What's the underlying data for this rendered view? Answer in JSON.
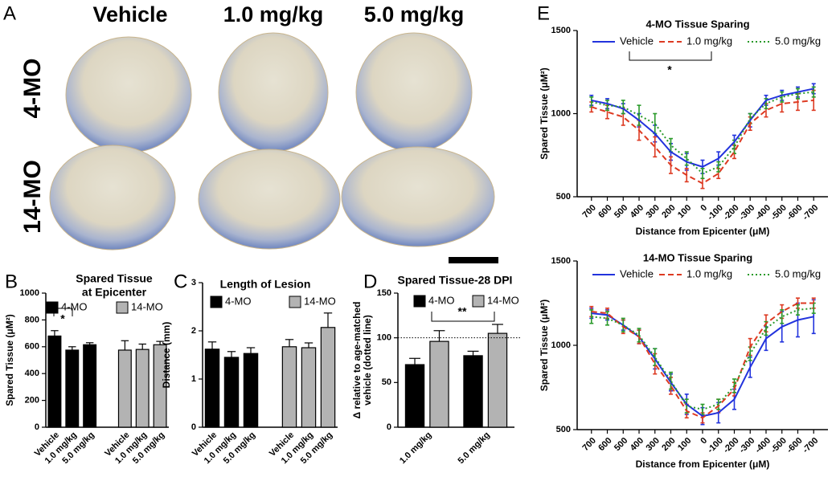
{
  "panel_a": {
    "panel": "A",
    "columns": [
      "Vehicle",
      "1.0 mg/kg",
      "5.0 mg/kg"
    ],
    "rows": [
      "4-MO",
      "14-MO"
    ]
  },
  "chart_data": [
    {
      "type": "bar",
      "panel": "B",
      "title": "Spared Tissue",
      "subtitle": "at Epicenter",
      "ylabel": "Spared Tissue (μM²)",
      "categories": [
        "Vehicle",
        "1.0 mg/kg",
        "5.0 mg/kg",
        null,
        "Vehicle",
        "1.0 mg/kg",
        "5.0 mg/kg"
      ],
      "series": [
        {
          "name": "4-MO",
          "color": "#000000",
          "values": [
            680,
            575,
            615,
            null,
            null,
            null,
            null
          ],
          "errors": [
            40,
            25,
            15,
            null,
            null,
            null,
            null
          ]
        },
        {
          "name": "14-MO",
          "color": "#b3b3b3",
          "values": [
            null,
            null,
            null,
            null,
            575,
            580,
            615
          ],
          "errors": [
            null,
            null,
            null,
            null,
            70,
            40,
            25
          ]
        }
      ],
      "ylim": [
        0,
        1000
      ],
      "yticks": [
        0,
        200,
        400,
        600,
        800,
        1000
      ],
      "annotation": "*"
    },
    {
      "type": "bar",
      "panel": "C",
      "title": "Length of Lesion",
      "ylabel": "Distance (mm)",
      "categories": [
        "Vehicle",
        "1.0 mg/kg",
        "5.0 mg/kg",
        null,
        "Vehicle",
        "1.0 mg/kg",
        "5.0 mg/kg"
      ],
      "series": [
        {
          "name": "4-MO",
          "color": "#000000",
          "values": [
            1.62,
            1.45,
            1.53,
            null,
            null,
            null,
            null
          ],
          "errors": [
            0.15,
            0.12,
            0.12,
            null,
            null,
            null,
            null
          ]
        },
        {
          "name": "14-MO",
          "color": "#b3b3b3",
          "values": [
            null,
            null,
            null,
            null,
            1.67,
            1.65,
            2.07
          ],
          "errors": [
            null,
            null,
            null,
            null,
            0.15,
            0.1,
            0.3
          ]
        }
      ],
      "ylim": [
        0,
        3
      ],
      "yticks": [
        0,
        1,
        2,
        3
      ]
    },
    {
      "type": "bar",
      "panel": "D",
      "title": "Spared Tissue-28 DPI",
      "ylabel": [
        "Δ relative to age-matched",
        "vehicle (dotted line)"
      ],
      "categories": [
        "1.0 mg/kg",
        "5.0 mg/kg"
      ],
      "series": [
        {
          "name": "4-MO",
          "color": "#000000",
          "values": [
            70,
            80
          ],
          "errors": [
            7,
            5
          ]
        },
        {
          "name": "14-MO",
          "color": "#b3b3b3",
          "values": [
            96,
            105
          ],
          "errors": [
            12,
            10
          ]
        }
      ],
      "ylim": [
        0,
        150
      ],
      "yticks": [
        0,
        50,
        100,
        150
      ],
      "reference_line": 100,
      "annotation": "**"
    },
    {
      "type": "line",
      "panel": "E",
      "title": "4-MO Tissue Sparing",
      "xlabel": "Distance from Epicenter (μM)",
      "ylabel": "Spared Tissue (μM²)",
      "x": [
        700,
        600,
        500,
        400,
        300,
        200,
        100,
        0,
        -100,
        -200,
        -300,
        -400,
        -500,
        -600,
        -700
      ],
      "series": [
        {
          "name": "Vehicle",
          "color": "#2233dd",
          "dash": "solid",
          "values": [
            1080,
            1060,
            1030,
            960,
            880,
            770,
            710,
            680,
            730,
            830,
            960,
            1080,
            1110,
            1130,
            1150
          ],
          "errors": [
            30,
            30,
            30,
            40,
            50,
            50,
            50,
            40,
            40,
            40,
            40,
            30,
            30,
            30,
            30
          ]
        },
        {
          "name": "1.0 mg/kg",
          "color": "#dd3a22",
          "dash": "dashed",
          "values": [
            1040,
            1010,
            980,
            900,
            800,
            690,
            630,
            580,
            640,
            770,
            940,
            1020,
            1060,
            1070,
            1080
          ],
          "errors": [
            30,
            40,
            50,
            60,
            60,
            50,
            40,
            30,
            30,
            40,
            40,
            40,
            50,
            50,
            60
          ]
        },
        {
          "name": "5.0 mg/kg",
          "color": "#2a9a2a",
          "dash": "dotted",
          "values": [
            1070,
            1050,
            1040,
            990,
            940,
            810,
            730,
            640,
            680,
            800,
            970,
            1060,
            1100,
            1120,
            1130
          ],
          "errors": [
            30,
            30,
            40,
            60,
            60,
            40,
            40,
            30,
            30,
            40,
            30,
            30,
            30,
            30,
            30
          ]
        }
      ],
      "xlim": [
        790,
        -790
      ],
      "xticks": [
        700,
        600,
        500,
        400,
        300,
        200,
        100,
        0,
        -100,
        -200,
        -300,
        -400,
        -500,
        -600,
        -700
      ],
      "ylim": [
        500,
        1500
      ],
      "yticks": [
        500,
        1000,
        1500
      ],
      "annotation": "*"
    },
    {
      "type": "line",
      "title": "14-MO Tissue Sparing",
      "xlabel": "Distance from Epicenter (μM)",
      "ylabel": "Spared Tissue (μM²)",
      "x": [
        700,
        600,
        500,
        400,
        300,
        200,
        100,
        0,
        -100,
        -200,
        -300,
        -400,
        -500,
        -600,
        -700
      ],
      "series": [
        {
          "name": "Vehicle",
          "color": "#2233dd",
          "dash": "solid",
          "values": [
            1190,
            1180,
            1120,
            1050,
            920,
            780,
            650,
            580,
            600,
            680,
            870,
            1040,
            1110,
            1150,
            1170
          ],
          "errors": [
            30,
            30,
            30,
            40,
            60,
            50,
            60,
            50,
            60,
            60,
            60,
            70,
            90,
            100,
            100
          ]
        },
        {
          "name": "1.0 mg/kg",
          "color": "#dd3a22",
          "dash": "dashed",
          "values": [
            1200,
            1190,
            1110,
            1050,
            890,
            760,
            610,
            570,
            640,
            740,
            990,
            1130,
            1200,
            1250,
            1250
          ],
          "errors": [
            30,
            30,
            40,
            40,
            60,
            50,
            40,
            30,
            40,
            40,
            50,
            50,
            40,
            30,
            30
          ]
        },
        {
          "name": "5.0 mg/kg",
          "color": "#2a9a2a",
          "dash": "dotted",
          "values": [
            1170,
            1160,
            1120,
            1060,
            930,
            790,
            640,
            620,
            650,
            760,
            950,
            1100,
            1170,
            1210,
            1220
          ],
          "errors": [
            40,
            40,
            40,
            40,
            50,
            50,
            40,
            30,
            30,
            40,
            40,
            40,
            40,
            30,
            30
          ]
        }
      ],
      "xlim": [
        790,
        -790
      ],
      "xticks": [
        700,
        600,
        500,
        400,
        300,
        200,
        100,
        0,
        -100,
        -200,
        -300,
        -400,
        -500,
        -600,
        -700
      ],
      "ylim": [
        500,
        1500
      ],
      "yticks": [
        500,
        1000,
        1500
      ]
    }
  ]
}
